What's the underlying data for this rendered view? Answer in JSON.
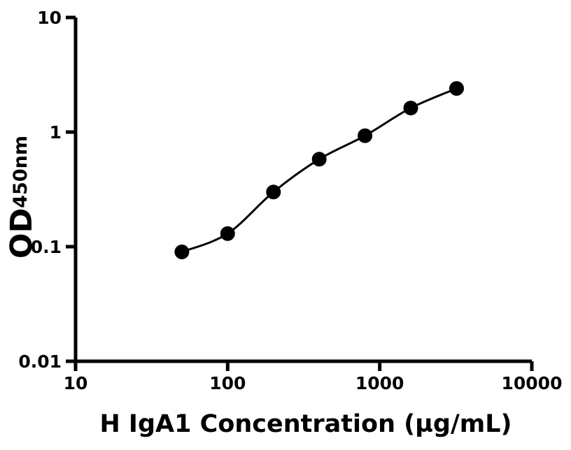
{
  "page": {
    "background_color": "#ffffff",
    "foreground_color": "#000000"
  },
  "chart_data": {
    "type": "scatter",
    "title": "",
    "xlabel": "H IgA1 Concentration (µg/mL)",
    "ylabel_main": "OD",
    "ylabel_sub": "450nm",
    "x": [
      50,
      100,
      200,
      400,
      800,
      1600,
      3200
    ],
    "y": [
      0.09,
      0.13,
      0.3,
      0.58,
      0.93,
      1.62,
      2.4
    ],
    "x_scale": "log",
    "y_scale": "log",
    "xlim": [
      10,
      10000
    ],
    "ylim": [
      0.01,
      10
    ],
    "x_ticks": [
      10,
      100,
      1000,
      10000
    ],
    "x_tick_labels": [
      "10",
      "100",
      "1000",
      "10000"
    ],
    "y_ticks": [
      0.01,
      0.1,
      1,
      10
    ],
    "y_tick_labels": [
      "0.01",
      "0.1",
      "1",
      "10"
    ],
    "grid": false,
    "legend": null,
    "marker_shape": "circle",
    "marker_color": "#000000",
    "line_color": "#000000",
    "axis_color": "#000000",
    "curve_style": "smooth fit through data points"
  }
}
